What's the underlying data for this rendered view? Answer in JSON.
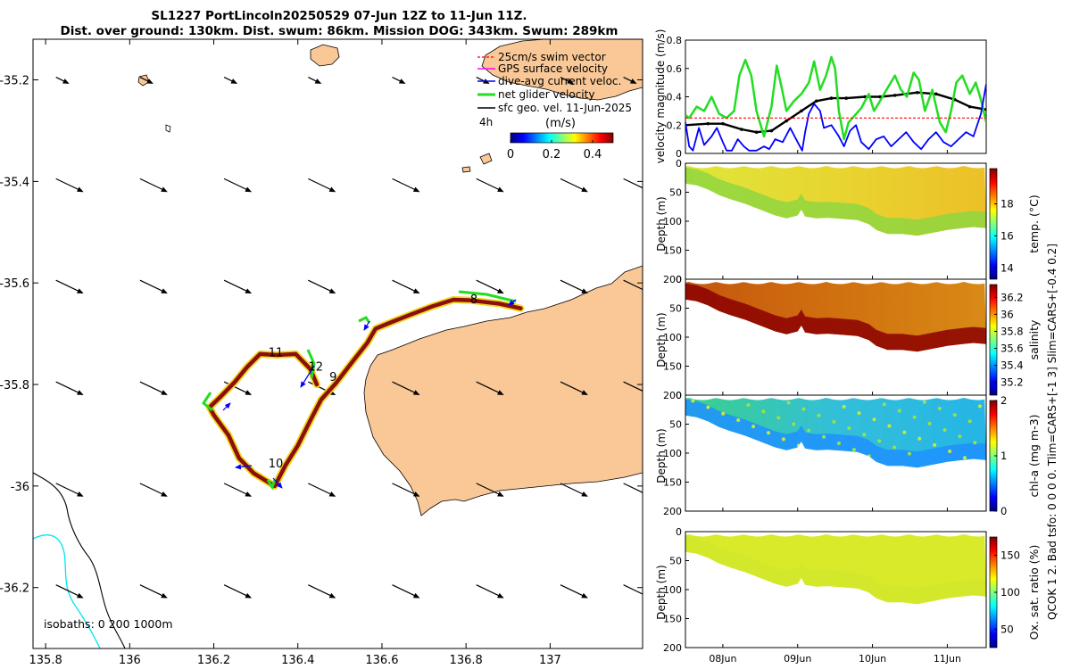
{
  "header": {
    "line1": "SL1227 PortLincoln20250529 07-Jun 12Z to 11-Jun 11Z.",
    "line2": "Dist. over ground: 130km. Dist. swum: 86km. Mission DOG: 343km. Swum: 289km"
  },
  "colors": {
    "land": "#f9c896",
    "track_outer": "#f2d61a",
    "track_inner": "#8b0f0f",
    "swim_vector": "#ff0000",
    "gps_velocity": "#ff00ff",
    "dive_avg_current": "#0000ff",
    "net_glider_velocity": "#22dd22",
    "sfc_geo_velocity": "#000000",
    "isobath_200": "#000000",
    "isobath_1000": "#00e5ee"
  },
  "side_label": "QCOK 1  2. Bad tsfo: 0  0  0  0. Tlim=CARS+[-1 3] Slim=CARS+[-0.4 0.2]",
  "chart_data": [
    {
      "id": "map",
      "type": "map",
      "xlim": [
        135.77,
        137.22
      ],
      "ylim": [
        -36.32,
        -35.12
      ],
      "xticks": [
        135.8,
        136,
        136.2,
        136.4,
        136.6,
        136.8,
        137
      ],
      "xtick_labels": [
        "135.8",
        "136",
        "136.2",
        "136.4",
        "136.6",
        "136.8",
        "137"
      ],
      "yticks": [
        -35.2,
        -35.4,
        -35.6,
        -35.8,
        -36,
        -36.2
      ],
      "ytick_labels": [
        "-35.2",
        "-35.4",
        "-35.6",
        "-35.8",
        "-36",
        "-36.2"
      ],
      "legend": {
        "items": [
          "25cm/s swim vector",
          "GPS surface velocity",
          "dive-avg current veloc.",
          "net glider velocity",
          "sfc geo. vel. 11-Jun-2025"
        ],
        "extra_label": "4h"
      },
      "colorbar": {
        "label": "(m/s)",
        "range": [
          0,
          0.5
        ],
        "ticks": [
          0,
          0.2,
          0.4
        ],
        "tick_labels": [
          "0",
          "0.2",
          "0.4"
        ]
      },
      "isobath_label": "isobaths: 0   200  1000m",
      "day_markers": [
        {
          "label": "8",
          "lon": 136.81,
          "lat": -35.64
        },
        {
          "label": "9",
          "lon": 136.475,
          "lat": -35.793
        },
        {
          "label": "10",
          "lon": 136.33,
          "lat": -35.963
        },
        {
          "label": "11",
          "lon": 136.33,
          "lat": -35.745
        },
        {
          "label": "12",
          "lon": 136.425,
          "lat": -35.773
        }
      ],
      "track": [
        [
          136.93,
          -35.65
        ],
        [
          136.88,
          -35.641
        ],
        [
          136.84,
          -35.637
        ],
        [
          136.81,
          -35.634
        ],
        [
          136.77,
          -35.633
        ],
        [
          136.72,
          -35.646
        ],
        [
          136.66,
          -35.665
        ],
        [
          136.62,
          -35.678
        ],
        [
          136.585,
          -35.69
        ],
        [
          136.565,
          -35.718
        ],
        [
          136.53,
          -35.755
        ],
        [
          136.49,
          -35.798
        ],
        [
          136.455,
          -35.83
        ],
        [
          136.43,
          -35.87
        ],
        [
          136.4,
          -35.92
        ],
        [
          136.37,
          -35.96
        ],
        [
          136.345,
          -36.0
        ],
        [
          136.295,
          -35.975
        ],
        [
          136.26,
          -35.945
        ],
        [
          136.235,
          -35.9
        ],
        [
          136.2,
          -35.86
        ],
        [
          136.19,
          -35.845
        ],
        [
          136.215,
          -35.825
        ],
        [
          136.25,
          -35.795
        ],
        [
          136.28,
          -35.765
        ],
        [
          136.31,
          -35.74
        ],
        [
          136.35,
          -35.742
        ],
        [
          136.395,
          -35.74
        ],
        [
          136.43,
          -35.77
        ],
        [
          136.445,
          -35.8
        ]
      ],
      "sfc_geo_arrows": {
        "lon": [
          135.85,
          136.05,
          136.25,
          136.45,
          136.65,
          136.85,
          137.05,
          137.2
        ],
        "lat": [
          -35.2,
          -35.4,
          -35.6,
          -35.8,
          -36.0,
          -36.2
        ]
      }
    },
    {
      "id": "velocity",
      "type": "line",
      "ylabel": "velocity magnitude (m/s)",
      "ylim": [
        0,
        0.8
      ],
      "yticks": [
        0,
        0.2,
        0.4,
        0.6,
        0.8
      ],
      "ytick_labels": [
        "0",
        "0.2",
        "0.4",
        "0.6",
        "0.8"
      ],
      "xlim_days": [
        7.5,
        11.52
      ],
      "series": [
        {
          "name": "sfc geo. vel.",
          "color": "#000000",
          "x": [
            7.5,
            7.8,
            8.0,
            8.25,
            8.45,
            8.65,
            8.85,
            9.05,
            9.25,
            9.45,
            9.65,
            9.9,
            10.1,
            10.3,
            10.6,
            10.85,
            11.1,
            11.3,
            11.52
          ],
          "values": [
            0.2,
            0.21,
            0.21,
            0.17,
            0.15,
            0.16,
            0.23,
            0.3,
            0.37,
            0.39,
            0.39,
            0.4,
            0.4,
            0.41,
            0.43,
            0.42,
            0.38,
            0.33,
            0.31
          ]
        },
        {
          "name": "net glider velocity",
          "color": "#22dd22",
          "x": [
            7.5,
            7.55,
            7.65,
            7.75,
            7.85,
            7.95,
            8.05,
            8.15,
            8.22,
            8.3,
            8.38,
            8.45,
            8.55,
            8.65,
            8.72,
            8.78,
            8.85,
            8.95,
            9.05,
            9.15,
            9.22,
            9.3,
            9.38,
            9.45,
            9.5,
            9.55,
            9.62,
            9.68,
            9.75,
            9.85,
            9.95,
            10.02,
            10.1,
            10.2,
            10.3,
            10.38,
            10.46,
            10.55,
            10.62,
            10.7,
            10.8,
            10.9,
            10.98,
            11.05,
            11.12,
            11.2,
            11.3,
            11.38,
            11.45,
            11.52
          ],
          "values": [
            0.27,
            0.25,
            0.33,
            0.3,
            0.4,
            0.28,
            0.25,
            0.3,
            0.55,
            0.66,
            0.55,
            0.3,
            0.12,
            0.33,
            0.62,
            0.48,
            0.3,
            0.37,
            0.42,
            0.5,
            0.65,
            0.45,
            0.55,
            0.68,
            0.6,
            0.3,
            0.1,
            0.22,
            0.26,
            0.32,
            0.42,
            0.3,
            0.37,
            0.46,
            0.55,
            0.45,
            0.4,
            0.57,
            0.52,
            0.3,
            0.45,
            0.22,
            0.15,
            0.3,
            0.5,
            0.55,
            0.42,
            0.5,
            0.38,
            0.22
          ]
        },
        {
          "name": "dive-avg current",
          "color": "#0000ff",
          "x": [
            7.5,
            7.55,
            7.6,
            7.68,
            7.75,
            7.85,
            7.92,
            8.0,
            8.05,
            8.12,
            8.2,
            8.28,
            8.35,
            8.45,
            8.55,
            8.62,
            8.7,
            8.8,
            8.9,
            9.0,
            9.06,
            9.1,
            9.15,
            9.22,
            9.3,
            9.35,
            9.45,
            9.55,
            9.62,
            9.7,
            9.78,
            9.85,
            9.95,
            10.05,
            10.15,
            10.25,
            10.35,
            10.45,
            10.55,
            10.65,
            10.75,
            10.85,
            10.95,
            11.05,
            11.15,
            11.25,
            11.35,
            11.45,
            11.52
          ],
          "values": [
            0.22,
            0.05,
            0.02,
            0.18,
            0.06,
            0.12,
            0.18,
            0.08,
            0.02,
            0.02,
            0.1,
            0.05,
            0.02,
            0.02,
            0.05,
            0.03,
            0.1,
            0.08,
            0.18,
            0.08,
            0.02,
            0.15,
            0.28,
            0.35,
            0.3,
            0.18,
            0.2,
            0.12,
            0.05,
            0.16,
            0.2,
            0.08,
            0.03,
            0.1,
            0.12,
            0.05,
            0.1,
            0.15,
            0.08,
            0.03,
            0.1,
            0.15,
            0.08,
            0.05,
            0.1,
            0.15,
            0.12,
            0.28,
            0.49
          ]
        },
        {
          "name": "swim reference (25cm/s)",
          "color": "#ff0000",
          "x": [
            7.5,
            11.52
          ],
          "values": [
            0.25,
            0.25
          ]
        }
      ]
    },
    {
      "id": "temperature",
      "type": "heatmap",
      "ylabel": "Depth (m)",
      "ylim": [
        200,
        0
      ],
      "yticks": [
        0,
        50,
        100,
        150,
        200
      ],
      "ytick_labels": [
        "0",
        "50",
        "100",
        "150",
        "200"
      ],
      "colorbar": {
        "label": "temp. (°C)",
        "range": [
          13.3,
          20.2
        ],
        "ticks": [
          14,
          16,
          18
        ],
        "tick_labels": [
          "14",
          "16",
          "18"
        ]
      }
    },
    {
      "id": "salinity",
      "type": "heatmap",
      "ylabel": "Depth (m)",
      "ylim": [
        200,
        0
      ],
      "yticks": [
        0,
        50,
        100,
        150,
        200
      ],
      "ytick_labels": [
        "0",
        "50",
        "100",
        "150",
        "200"
      ],
      "colorbar": {
        "label": "salinity",
        "range": [
          35.05,
          36.35
        ],
        "ticks": [
          35.2,
          35.4,
          35.6,
          35.8,
          36,
          36.2
        ],
        "tick_labels": [
          "35.2",
          "35.4",
          "35.6",
          "35.8",
          "36",
          "36.2"
        ]
      }
    },
    {
      "id": "chlorophyll",
      "type": "heatmap",
      "ylabel": "Depth (m)",
      "ylim": [
        200,
        0
      ],
      "yticks": [
        0,
        50,
        100,
        150,
        200
      ],
      "ytick_labels": [
        "0",
        "50",
        "100",
        "150",
        "200"
      ],
      "colorbar": {
        "label": "chl-a (mg m-3)",
        "range": [
          0,
          2
        ],
        "ticks": [
          0,
          1,
          2
        ],
        "tick_labels": [
          "0",
          "1",
          "2"
        ]
      }
    },
    {
      "id": "oxygen",
      "type": "heatmap",
      "ylabel": "Depth (m)",
      "ylim": [
        200,
        0
      ],
      "yticks": [
        0,
        50,
        100,
        150,
        200
      ],
      "ytick_labels": [
        "0",
        "50",
        "100",
        "150",
        "200"
      ],
      "colorbar": {
        "label": "Ox. sat. ratio (%)",
        "range": [
          25,
          175
        ],
        "ticks": [
          50,
          100,
          150
        ],
        "tick_labels": [
          "50",
          "100",
          "150"
        ]
      },
      "xticks_days": [
        8,
        9,
        10,
        11
      ],
      "xtick_labels": [
        "08Jun",
        "09Jun",
        "10Jun",
        "11Jun"
      ]
    }
  ]
}
